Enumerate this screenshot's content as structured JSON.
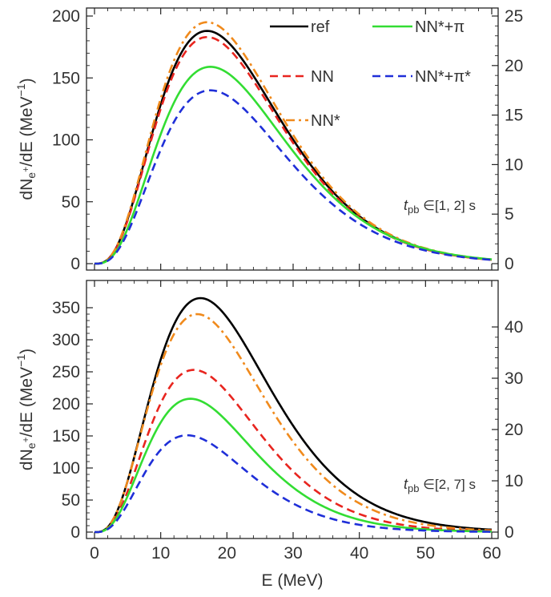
{
  "chart_data": [
    {
      "type": "line",
      "ylabel": "dN_e+/dE (MeV^-1)",
      "xlim": [
        0,
        60
      ],
      "ylim": [
        0,
        200
      ],
      "y2lim": [
        0,
        25
      ],
      "x_ticks": [
        "0",
        "10",
        "20",
        "30",
        "40",
        "50",
        "60"
      ],
      "y_ticks": [
        "0",
        "50",
        "100",
        "150",
        "200"
      ],
      "y2_ticks": [
        "0",
        "5",
        "10",
        "15",
        "20",
        "25"
      ],
      "annotation": {
        "t": "t",
        "sub": "pb",
        "range": " ∈[1, 2] s"
      },
      "legend": [
        {
          "key": "ref",
          "label": "ref",
          "color": "#000000",
          "dash": "solid"
        },
        {
          "key": "nnpi",
          "label": "NN*+π",
          "color": "#33dd33",
          "dash": "solid"
        },
        {
          "key": "nn",
          "label": "NN",
          "color": "#e8251f",
          "dash": "dashed"
        },
        {
          "key": "nnpistar",
          "label": "NN*+π*",
          "color": "#1f2fd8",
          "dash": "dashed"
        },
        {
          "key": "nnstar",
          "label": "NN*",
          "color": "#f08a1c",
          "dash": "dashdot"
        }
      ],
      "series": [
        {
          "key": "ref",
          "name": "ref",
          "peak_x": 17,
          "peak_y": 188,
          "color": "#000000",
          "dash": "solid"
        },
        {
          "key": "nn",
          "name": "NN",
          "peak_x": 17,
          "peak_y": 183,
          "color": "#e8251f",
          "dash": "dashed"
        },
        {
          "key": "nnstar",
          "name": "NN*",
          "peak_x": 17,
          "peak_y": 195,
          "color": "#f08a1c",
          "dash": "dashdot"
        },
        {
          "key": "nnpi",
          "name": "NN*+π",
          "peak_x": 17.5,
          "peak_y": 159,
          "color": "#33dd33",
          "dash": "solid"
        },
        {
          "key": "nnpistar",
          "name": "NN*+π*",
          "peak_x": 17.5,
          "peak_y": 140,
          "color": "#1f2fd8",
          "dash": "dashed"
        }
      ]
    },
    {
      "type": "line",
      "xlabel": "E (MeV)",
      "ylabel": "dN_e+/dE (MeV^-1)",
      "xlim": [
        0,
        60
      ],
      "ylim": [
        0,
        380
      ],
      "y2lim": [
        0,
        47.5
      ],
      "x_ticks": [
        "0",
        "10",
        "20",
        "30",
        "40",
        "50",
        "60"
      ],
      "y_ticks": [
        "0",
        "50",
        "100",
        "150",
        "200",
        "250",
        "300",
        "350"
      ],
      "y2_ticks": [
        "0",
        "10",
        "20",
        "30",
        "40"
      ],
      "annotation": {
        "t": "t",
        "sub": "pb",
        "range": " ∈[2, 7] s"
      },
      "series": [
        {
          "key": "ref",
          "name": "ref",
          "peak_x": 16,
          "peak_y": 365,
          "color": "#000000",
          "dash": "solid"
        },
        {
          "key": "nnstar",
          "name": "NN*",
          "peak_x": 15.5,
          "peak_y": 340,
          "color": "#f08a1c",
          "dash": "dashdot"
        },
        {
          "key": "nn",
          "name": "NN",
          "peak_x": 15,
          "peak_y": 253,
          "color": "#e8251f",
          "dash": "dashed"
        },
        {
          "key": "nnpi",
          "name": "NN*+π",
          "peak_x": 14.5,
          "peak_y": 208,
          "color": "#33dd33",
          "dash": "solid"
        },
        {
          "key": "nnpistar",
          "name": "NN*+π*",
          "peak_x": 14,
          "peak_y": 151,
          "color": "#1f2fd8",
          "dash": "dashed"
        }
      ]
    }
  ]
}
